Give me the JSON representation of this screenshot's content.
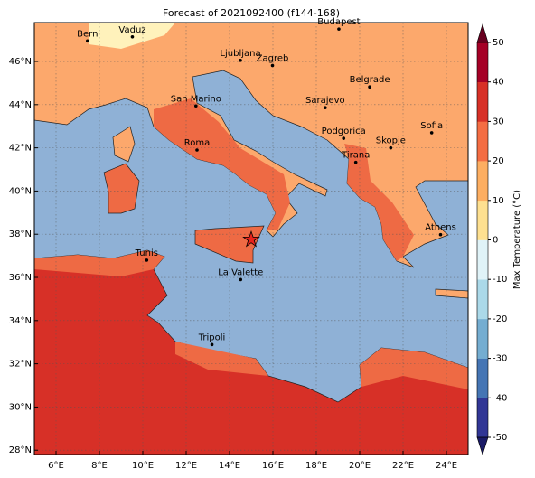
{
  "title": "Forecast of 2021092400 (f144-168)",
  "map": {
    "xlim": [
      5,
      25
    ],
    "ylim": [
      27.8,
      47.8
    ],
    "xticks": [
      {
        "value": 6,
        "label": "6°E"
      },
      {
        "value": 8,
        "label": "8°E"
      },
      {
        "value": 10,
        "label": "10°E"
      },
      {
        "value": 12,
        "label": "12°E"
      },
      {
        "value": 14,
        "label": "14°E"
      },
      {
        "value": 16,
        "label": "16°E"
      },
      {
        "value": 18,
        "label": "18°E"
      },
      {
        "value": 20,
        "label": "20°E"
      },
      {
        "value": 22,
        "label": "22°E"
      },
      {
        "value": 24,
        "label": "24°E"
      }
    ],
    "yticks": [
      {
        "value": 28,
        "label": "28°N"
      },
      {
        "value": 30,
        "label": "30°N"
      },
      {
        "value": 32,
        "label": "32°N"
      },
      {
        "value": 34,
        "label": "34°N"
      },
      {
        "value": 36,
        "label": "36°N"
      },
      {
        "value": 38,
        "label": "38°N"
      },
      {
        "value": 40,
        "label": "40°N"
      },
      {
        "value": 42,
        "label": "42°N"
      },
      {
        "value": 44,
        "label": "44°N"
      },
      {
        "value": 46,
        "label": "46°N"
      }
    ],
    "grid": true
  },
  "cities": [
    {
      "label": "Bern",
      "lon": 7.45,
      "lat": 46.95
    },
    {
      "label": "Vaduz",
      "lon": 9.52,
      "lat": 47.14
    },
    {
      "label": "Budapest",
      "lon": 19.04,
      "lat": 47.5
    },
    {
      "label": "Ljubljana",
      "lon": 14.5,
      "lat": 46.05
    },
    {
      "label": "Zagreb",
      "lon": 15.98,
      "lat": 45.81
    },
    {
      "label": "Belgrade",
      "lon": 20.46,
      "lat": 44.82
    },
    {
      "label": "San Marino",
      "lon": 12.45,
      "lat": 43.94
    },
    {
      "label": "Sarajevo",
      "lon": 18.41,
      "lat": 43.86
    },
    {
      "label": "Sofia",
      "lon": 23.32,
      "lat": 42.7
    },
    {
      "label": "Roma",
      "lon": 12.5,
      "lat": 41.9
    },
    {
      "label": "Podgorica",
      "lon": 19.26,
      "lat": 42.44
    },
    {
      "label": "Skopje",
      "lon": 21.43,
      "lat": 42.0
    },
    {
      "label": "Tirana",
      "lon": 19.82,
      "lat": 41.33
    },
    {
      "label": "Athens",
      "lon": 23.73,
      "lat": 37.98
    },
    {
      "label": "Tunis",
      "lon": 10.18,
      "lat": 36.8
    },
    {
      "label": "La Valette",
      "lon": 14.51,
      "lat": 35.9
    },
    {
      "label": "Tripoli",
      "lon": 13.19,
      "lat": 32.89
    }
  ],
  "marker": {
    "lon": 15.0,
    "lat": 37.75,
    "color": "#e8221b"
  },
  "colorbar": {
    "label": "Max Temperature (°C)",
    "ticks": [
      -50,
      -40,
      -30,
      -20,
      -10,
      0,
      10,
      20,
      30,
      40,
      50
    ],
    "colors": [
      "#313695",
      "#4575b4",
      "#74add1",
      "#abd9e9",
      "#e0f3f8",
      "#fee090",
      "#fdae61",
      "#f46d43",
      "#d73027",
      "#a50026"
    ],
    "under": "#1a1a66",
    "over": "#67001f"
  }
}
